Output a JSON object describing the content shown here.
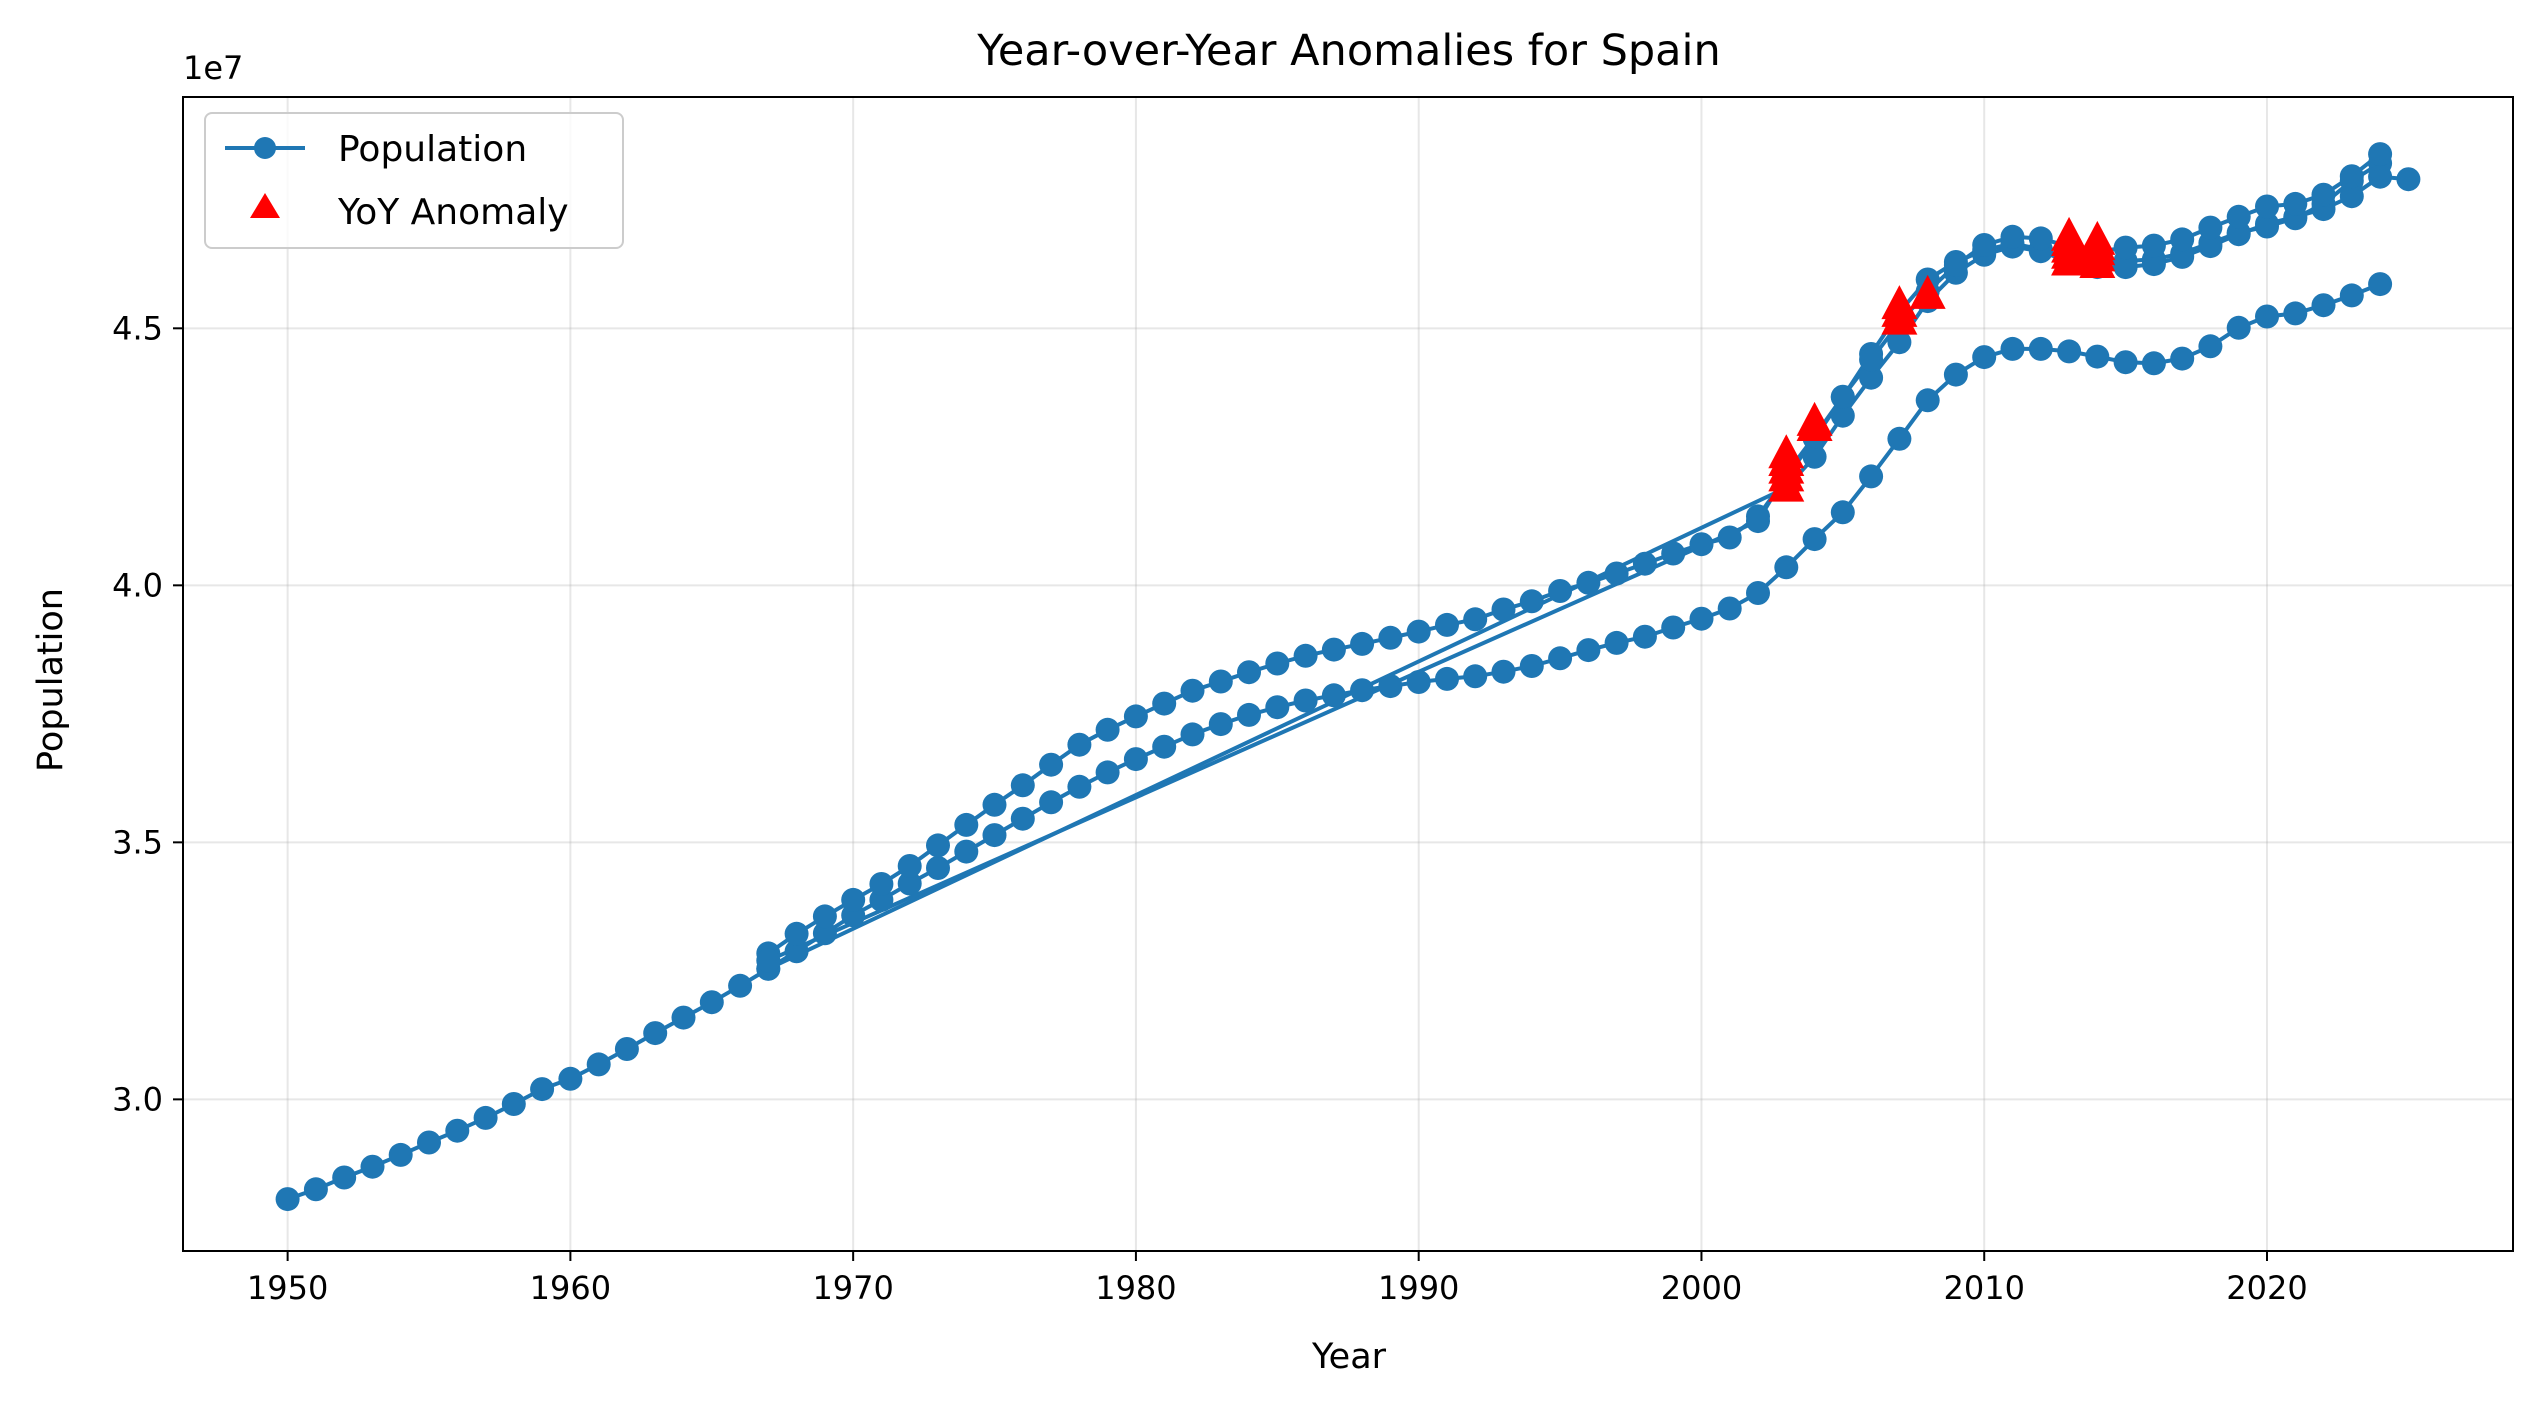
{
  "chart_data": {
    "type": "line",
    "title": "Year-over-Year Anomalies for Spain",
    "xlabel": "Year",
    "ylabel": "Population",
    "y_offset_label": "1e7",
    "xlim": [
      1946.3,
      2028.7
    ],
    "ylim": [
      27050000,
      49500000
    ],
    "x_ticks": [
      1950,
      1960,
      1970,
      1980,
      1990,
      2000,
      2010,
      2020
    ],
    "x_tick_labels": [
      "1950",
      "1960",
      "1970",
      "1980",
      "1990",
      "2000",
      "2010",
      "2020"
    ],
    "y_ticks": [
      30000000,
      35000000,
      40000000,
      45000000
    ],
    "y_tick_labels": [
      "3.0",
      "3.5",
      "4.0",
      "4.5"
    ],
    "grid": true,
    "legend_position": "upper left",
    "colors": {
      "population": "#1f77b4",
      "anomaly": "#ff0000"
    },
    "series": [
      {
        "name": "Population",
        "style": "line-with-circle-markers",
        "segments": [
          {
            "x": [
              1950,
              1951,
              1952,
              1953,
              1954,
              1955,
              1956,
              1957,
              1958,
              1959,
              1960,
              1961,
              1962,
              1963,
              1964,
              1965,
              1966,
              1967,
              1968,
              1969,
              1970,
              1971,
              1972,
              1973,
              1974,
              1975,
              1976,
              1977,
              1978,
              1979,
              1980,
              1981,
              1982,
              1983,
              1984,
              1985,
              1986,
              1987,
              1988,
              1989,
              1990,
              1991,
              1992,
              1993,
              1994,
              1995,
              1996,
              1997,
              1998,
              1999,
              2000,
              2001,
              2002,
              2003,
              2004,
              2005,
              2006,
              2007,
              2008,
              2009,
              2010,
              2011,
              2012,
              2013,
              2014,
              2015,
              2016,
              2017,
              2018,
              2019,
              2020,
              2021,
              2022,
              2023,
              2024
            ],
            "y": [
              28060000,
              28250000,
              28480000,
              28690000,
              28920000,
              29160000,
              29390000,
              29640000,
              29910000,
              30200000,
              30400000,
              30680000,
              30980000,
              31290000,
              31590000,
              31890000,
              32210000,
              32540000,
              32880000,
              33230000,
              33580000,
              33880000,
              34200000,
              34500000,
              34820000,
              35140000,
              35460000,
              35780000,
              36080000,
              36360000,
              36620000,
              36860000,
              37100000,
              37300000,
              37480000,
              37630000,
              37760000,
              37860000,
              37960000,
              38040000,
              38120000,
              38180000,
              38230000,
              38320000,
              38430000,
              38580000,
              38740000,
              38880000,
              39000000,
              39180000,
              39350000,
              39550000,
              39850000,
              40350000,
              40900000,
              41420000,
              42120000,
              42850000,
              43600000,
              44100000,
              44440000,
              44600000,
              44600000,
              44550000,
              44450000,
              44340000,
              44320000,
              44410000,
              44650000,
              45010000,
              45230000,
              45290000,
              45450000,
              45640000,
              45860000
            ]
          },
          {
            "x": [
              1967,
              1968,
              1969,
              1970,
              1971,
              1972,
              1973,
              1974,
              1975,
              1976,
              1977,
              1978,
              1979,
              1980,
              1981,
              1982,
              1983,
              1984,
              1985,
              1986,
              1987,
              1988,
              1989,
              1990,
              1991,
              1992,
              1993,
              1994,
              1995,
              1996,
              1997,
              1998,
              1999,
              2000,
              2001,
              2002,
              2003,
              2004,
              2005,
              2006,
              2007,
              2008,
              2009,
              2010,
              2011,
              2012,
              2013,
              2014,
              2015,
              2016,
              2017,
              2018,
              2019,
              2020,
              2021,
              2022,
              2023,
              2024
            ],
            "y": [
              32840000,
              33220000,
              33560000,
              33880000,
              34190000,
              34540000,
              34940000,
              35340000,
              35730000,
              36110000,
              36510000,
              36900000,
              37190000,
              37450000,
              37700000,
              37950000,
              38130000,
              38310000,
              38480000,
              38630000,
              38750000,
              38860000,
              38980000,
              39100000,
              39230000,
              39340000,
              39530000,
              39690000,
              39890000,
              40050000,
              40230000,
              40420000,
              40620000,
              40800000,
              40930000,
              41340000,
              42100000,
              42860000,
              43660000,
              44500000,
              45320000,
              45950000,
              46290000,
              46520000,
              46650000,
              46540000,
              46360000,
              46330000,
              46310000,
              46340000,
              46460000,
              46660000,
              46860000,
              46980000,
              47140000,
              47420000,
              47870000,
              48210000
            ]
          },
          {
            "x": [
              1967,
              2003,
              2004,
              2005,
              2006,
              2007,
              2008,
              2009,
              2010,
              2011,
              2012,
              2013,
              2014,
              2015,
              2016,
              2017,
              2018,
              2019,
              2020,
              2021,
              2022,
              2023,
              2024,
              2025
            ],
            "y": [
              32540000,
              41900000,
              42500000,
              43300000,
              44040000,
              44730000,
              45530000,
              46080000,
              46430000,
              46590000,
              46500000,
              46290000,
              46190000,
              46190000,
              46250000,
              46390000,
              46600000,
              46830000,
              47030000,
              47170000,
              47320000,
              47570000,
              47950000,
              47900000
            ]
          },
          {
            "x": [
              1967,
              2002,
              2003,
              2004,
              2005,
              2006,
              2007,
              2008,
              2009,
              2010,
              2011,
              2012,
              2013,
              2014,
              2015,
              2016,
              2017,
              2018,
              2019,
              2020,
              2021,
              2022,
              2023,
              2024
            ],
            "y": [
              32700000,
              41250000,
              42170000,
              42900000,
              43670000,
              44390000,
              45110000,
              45720000,
              46230000,
              46620000,
              46780000,
              46750000,
              46590000,
              46490000,
              46570000,
              46610000,
              46730000,
              46960000,
              47170000,
              47370000,
              47420000,
              47600000,
              47960000,
              48390000
            ]
          }
        ]
      },
      {
        "name": "YoY Anomaly",
        "style": "red-triangle-markers",
        "x": [
          2003,
          2003,
          2003,
          2003,
          2003,
          2004,
          2004,
          2007,
          2007,
          2007,
          2008,
          2013,
          2013,
          2013,
          2013,
          2013,
          2014,
          2014,
          2014,
          2014,
          2014
        ],
        "y": [
          41900000,
          42100000,
          42250000,
          42400000,
          42550000,
          43080000,
          43180000,
          45150000,
          45300000,
          45450000,
          45650000,
          46300000,
          46430000,
          46550000,
          46680000,
          46780000,
          46250000,
          46380000,
          46500000,
          46600000,
          46700000
        ]
      }
    ]
  }
}
